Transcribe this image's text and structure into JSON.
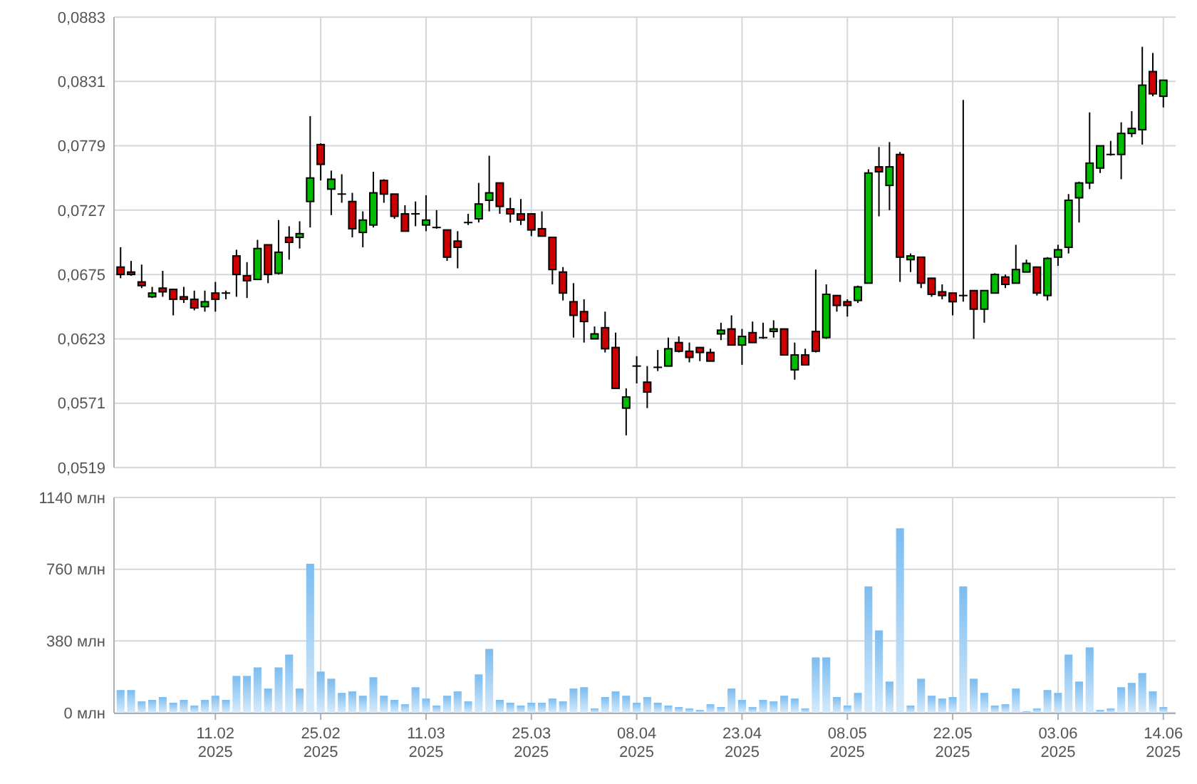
{
  "chart_data": [
    {
      "type": "candlestick",
      "categories": [
        null,
        null,
        null,
        null,
        null,
        null,
        null,
        null,
        null,
        null,
        null,
        null,
        null,
        null,
        null,
        null,
        null,
        null,
        null,
        null,
        null,
        null,
        null,
        null,
        null,
        null,
        null,
        null,
        null,
        null,
        null,
        null,
        null,
        null,
        null,
        null,
        null,
        null,
        null,
        null,
        null,
        null,
        null,
        null,
        null,
        null,
        null,
        null,
        null,
        null,
        null,
        null,
        null,
        null,
        null,
        null,
        null,
        null,
        null,
        null,
        null,
        null,
        null,
        null,
        null,
        null,
        null,
        null,
        null,
        null,
        null,
        null,
        null,
        null,
        null,
        null,
        null,
        null,
        null,
        null,
        null,
        null,
        null,
        null,
        null,
        null,
        null,
        null,
        null,
        null,
        null,
        null,
        null,
        null,
        null,
        null,
        null,
        null,
        null,
        null
      ],
      "ohlc": [
        [
          0.0681,
          0.0697,
          0.0672,
          0.0675
        ],
        [
          0.0677,
          0.0686,
          0.0674,
          0.0675
        ],
        [
          0.0669,
          0.0683,
          0.0664,
          0.0666
        ],
        [
          0.0657,
          0.0665,
          0.0656,
          0.066
        ],
        [
          0.0664,
          0.0678,
          0.0657,
          0.0661
        ],
        [
          0.0663,
          0.0663,
          0.0642,
          0.0655
        ],
        [
          0.0657,
          0.0665,
          0.0652,
          0.0655
        ],
        [
          0.0655,
          0.0662,
          0.0646,
          0.0648
        ],
        [
          0.0649,
          0.0662,
          0.0645,
          0.0653
        ],
        [
          0.066,
          0.0669,
          0.0645,
          0.0655
        ],
        [
          0.066,
          0.0662,
          0.0655,
          0.066
        ],
        [
          0.069,
          0.0695,
          0.0657,
          0.0675
        ],
        [
          0.0674,
          0.0685,
          0.0656,
          0.067
        ],
        [
          0.0671,
          0.0703,
          0.0671,
          0.0696
        ],
        [
          0.0699,
          0.0699,
          0.0668,
          0.0675
        ],
        [
          0.0676,
          0.0719,
          0.0675,
          0.0693
        ],
        [
          0.0705,
          0.0714,
          0.0687,
          0.0701
        ],
        [
          0.0705,
          0.0718,
          0.0696,
          0.0708
        ],
        [
          0.0734,
          0.0803,
          0.0713,
          0.0753
        ],
        [
          0.078,
          0.0781,
          0.0751,
          0.0764
        ],
        [
          0.0744,
          0.0759,
          0.0723,
          0.0752
        ],
        [
          0.074,
          0.0756,
          0.0733,
          0.074
        ],
        [
          0.0734,
          0.0741,
          0.0705,
          0.0712
        ],
        [
          0.0709,
          0.0726,
          0.0697,
          0.0719
        ],
        [
          0.0715,
          0.0758,
          0.0713,
          0.0741
        ],
        [
          0.0751,
          0.0752,
          0.0733,
          0.074
        ],
        [
          0.074,
          0.074,
          0.072,
          0.0722
        ],
        [
          0.0724,
          0.0731,
          0.071,
          0.071
        ],
        [
          0.0724,
          0.0734,
          0.0714,
          0.0724
        ],
        [
          0.0715,
          0.0739,
          0.071,
          0.0719
        ],
        [
          0.0713,
          0.0727,
          0.0712,
          0.0713
        ],
        [
          0.0711,
          0.0711,
          0.0686,
          0.0689
        ],
        [
          0.0702,
          0.071,
          0.068,
          0.0697
        ],
        [
          0.0717,
          0.0724,
          0.0715,
          0.0717
        ],
        [
          0.072,
          0.0749,
          0.0717,
          0.0732
        ],
        [
          0.0735,
          0.0771,
          0.0726,
          0.0741
        ],
        [
          0.0749,
          0.0749,
          0.0724,
          0.073
        ],
        [
          0.0728,
          0.0737,
          0.0717,
          0.0724
        ],
        [
          0.0724,
          0.0736,
          0.0715,
          0.0719
        ],
        [
          0.0724,
          0.0724,
          0.0706,
          0.0711
        ],
        [
          0.0712,
          0.0726,
          0.0706,
          0.0706
        ],
        [
          0.0705,
          0.0705,
          0.0667,
          0.0679
        ],
        [
          0.0677,
          0.0681,
          0.0654,
          0.066
        ],
        [
          0.0653,
          0.0668,
          0.0624,
          0.0642
        ],
        [
          0.0645,
          0.0655,
          0.062,
          0.0637
        ],
        [
          0.0623,
          0.0633,
          0.0623,
          0.0627
        ],
        [
          0.0632,
          0.0645,
          0.0612,
          0.0615
        ],
        [
          0.0616,
          0.0628,
          0.0583,
          0.0583
        ],
        [
          0.0567,
          0.0583,
          0.0545,
          0.0576
        ],
        [
          0.0601,
          0.0609,
          0.0587,
          0.0601
        ],
        [
          0.0588,
          0.0601,
          0.0567,
          0.058
        ],
        [
          0.06,
          0.0614,
          0.0597,
          0.06
        ],
        [
          0.0601,
          0.0624,
          0.0601,
          0.0615
        ],
        [
          0.062,
          0.0625,
          0.0612,
          0.0613
        ],
        [
          0.0613,
          0.062,
          0.0604,
          0.0608
        ],
        [
          0.0616,
          0.0616,
          0.0605,
          0.0612
        ],
        [
          0.0612,
          0.0615,
          0.0605,
          0.0605
        ],
        [
          0.0627,
          0.0636,
          0.0622,
          0.063
        ],
        [
          0.0631,
          0.0642,
          0.0618,
          0.0618
        ],
        [
          0.0618,
          0.0631,
          0.0602,
          0.0625
        ],
        [
          0.0628,
          0.0637,
          0.062,
          0.062
        ],
        [
          0.0624,
          0.0636,
          0.0623,
          0.0624
        ],
        [
          0.0629,
          0.0638,
          0.0624,
          0.0631
        ],
        [
          0.0631,
          0.0631,
          0.061,
          0.061
        ],
        [
          0.0598,
          0.062,
          0.059,
          0.061
        ],
        [
          0.061,
          0.0615,
          0.0602,
          0.0602
        ],
        [
          0.0629,
          0.0679,
          0.0612,
          0.0613
        ],
        [
          0.0624,
          0.0667,
          0.0623,
          0.0659
        ],
        [
          0.0658,
          0.0658,
          0.0645,
          0.065
        ],
        [
          0.0653,
          0.0655,
          0.0641,
          0.065
        ],
        [
          0.0654,
          0.0666,
          0.0652,
          0.0665
        ],
        [
          0.0668,
          0.076,
          0.0668,
          0.0757
        ],
        [
          0.0762,
          0.0778,
          0.0722,
          0.0758
        ],
        [
          0.0747,
          0.0782,
          0.0727,
          0.0762
        ],
        [
          0.0772,
          0.0774,
          0.0669,
          0.0689
        ],
        [
          0.0687,
          0.0692,
          0.0677,
          0.069
        ],
        [
          0.0689,
          0.0689,
          0.0664,
          0.0668
        ],
        [
          0.0672,
          0.0672,
          0.0657,
          0.0659
        ],
        [
          0.0661,
          0.0667,
          0.0655,
          0.0658
        ],
        [
          0.066,
          0.066,
          0.0642,
          0.0653
        ],
        [
          0.0658,
          0.0816,
          0.0653,
          0.0658
        ],
        [
          0.0662,
          0.0662,
          0.0623,
          0.0647
        ],
        [
          0.0647,
          0.0662,
          0.0636,
          0.0662
        ],
        [
          0.066,
          0.0676,
          0.066,
          0.0675
        ],
        [
          0.0673,
          0.0675,
          0.0664,
          0.0667
        ],
        [
          0.0668,
          0.0699,
          0.0668,
          0.0679
        ],
        [
          0.0677,
          0.0687,
          0.0677,
          0.0684
        ],
        [
          0.0681,
          0.0681,
          0.0658,
          0.066
        ],
        [
          0.0658,
          0.0689,
          0.0654,
          0.0688
        ],
        [
          0.0689,
          0.0699,
          0.0682,
          0.0695
        ],
        [
          0.0697,
          0.074,
          0.0692,
          0.0735
        ],
        [
          0.0737,
          0.075,
          0.0717,
          0.0749
        ],
        [
          0.0749,
          0.0806,
          0.0744,
          0.0765
        ],
        [
          0.0761,
          0.0779,
          0.0757,
          0.0779
        ],
        [
          0.0772,
          0.0783,
          0.0771,
          0.0772
        ],
        [
          0.0772,
          0.0798,
          0.0752,
          0.0789
        ],
        [
          0.0789,
          0.0807,
          0.0786,
          0.0793
        ],
        [
          0.0792,
          0.0859,
          0.078,
          0.0828
        ],
        [
          0.0839,
          0.0854,
          0.0819,
          0.0821
        ],
        [
          0.0819,
          0.0832,
          0.081,
          0.0832
        ]
      ],
      "colors": [
        "#cc0000",
        "#cc0000",
        "#cc0000",
        "#00bb00",
        "#cc0000",
        "#cc0000",
        "#cc0000",
        "#cc0000",
        "#00bb00",
        "#cc0000",
        "#000000",
        "#cc0000",
        "#cc0000",
        "#00bb00",
        "#cc0000",
        "#00bb00",
        "#cc0000",
        "#00bb00",
        "#00bb00",
        "#cc0000",
        "#00bb00",
        "#000000",
        "#cc0000",
        "#00bb00",
        "#00bb00",
        "#cc0000",
        "#cc0000",
        "#cc0000",
        "#000000",
        "#00bb00",
        "#000000",
        "#cc0000",
        "#cc0000",
        "#000000",
        "#00bb00",
        "#00bb00",
        "#cc0000",
        "#cc0000",
        "#cc0000",
        "#cc0000",
        "#cc0000",
        "#cc0000",
        "#cc0000",
        "#cc0000",
        "#cc0000",
        "#00bb00",
        "#cc0000",
        "#cc0000",
        "#00bb00",
        "#000000",
        "#cc0000",
        "#000000",
        "#00bb00",
        "#cc0000",
        "#cc0000",
        "#cc0000",
        "#cc0000",
        "#00bb00",
        "#cc0000",
        "#00bb00",
        "#cc0000",
        "#000000",
        "#00bb00",
        "#cc0000",
        "#00bb00",
        "#cc0000",
        "#cc0000",
        "#00bb00",
        "#cc0000",
        "#cc0000",
        "#00bb00",
        "#00bb00",
        "#cc0000",
        "#00bb00",
        "#cc0000",
        "#00bb00",
        "#cc0000",
        "#cc0000",
        "#cc0000",
        "#cc0000",
        "#000000",
        "#cc0000",
        "#00bb00",
        "#00bb00",
        "#cc0000",
        "#00bb00",
        "#00bb00",
        "#cc0000",
        "#00bb00",
        "#00bb00",
        "#00bb00",
        "#00bb00",
        "#00bb00",
        "#00bb00",
        "#000000",
        "#00bb00",
        "#00bb00",
        "#00bb00",
        "#cc0000",
        "#00bb00"
      ],
      "ylim": [
        0.0519,
        0.0883
      ],
      "yticks": [
        {
          "value": 0.0519,
          "label": "0,0519"
        },
        {
          "value": 0.0571,
          "label": "0,0571"
        },
        {
          "value": 0.0623,
          "label": "0,0623"
        },
        {
          "value": 0.0675,
          "label": "0,0675"
        },
        {
          "value": 0.0727,
          "label": "0,0727"
        },
        {
          "value": 0.0779,
          "label": "0,0779"
        },
        {
          "value": 0.0831,
          "label": "0,0831"
        },
        {
          "value": 0.0883,
          "label": "0,0883"
        }
      ],
      "grid": true,
      "tick_labels": "y"
    },
    {
      "type": "bar",
      "categories": [
        null,
        null,
        null,
        null,
        null,
        null,
        null,
        null,
        null,
        "11.02\n2025",
        null,
        null,
        null,
        null,
        null,
        null,
        null,
        null,
        null,
        "25.02\n2025",
        null,
        null,
        null,
        null,
        null,
        null,
        null,
        null,
        null,
        "11.03\n2025",
        null,
        null,
        null,
        null,
        null,
        null,
        null,
        null,
        null,
        "25.03\n2025",
        null,
        null,
        null,
        null,
        null,
        null,
        null,
        null,
        null,
        "08.04\n2025",
        null,
        null,
        null,
        null,
        null,
        null,
        null,
        null,
        null,
        "23.04\n2025",
        null,
        null,
        null,
        null,
        null,
        null,
        null,
        null,
        null,
        "08.05\n2025",
        null,
        null,
        null,
        null,
        null,
        null,
        null,
        null,
        null,
        "22.05\n2025",
        null,
        null,
        null,
        null,
        null,
        null,
        null,
        null,
        null,
        "03.06\n2025",
        null,
        null,
        null,
        null,
        null,
        null,
        null,
        null,
        null,
        "14.06\n2025"
      ],
      "values": [
        120,
        120,
        60,
        68,
        83,
        53,
        68,
        38,
        68,
        90,
        68,
        195,
        195,
        240,
        128,
        240,
        308,
        128,
        789,
        218,
        180,
        105,
        113,
        90,
        188,
        90,
        68,
        45,
        135,
        75,
        38,
        90,
        113,
        60,
        203,
        338,
        68,
        53,
        38,
        53,
        53,
        75,
        60,
        128,
        135,
        23,
        83,
        113,
        90,
        53,
        83,
        53,
        38,
        30,
        23,
        15,
        45,
        30,
        128,
        68,
        30,
        68,
        60,
        90,
        75,
        23,
        293,
        293,
        83,
        38,
        105,
        669,
        436,
        165,
        977,
        38,
        180,
        90,
        75,
        83,
        669,
        180,
        105,
        38,
        45,
        128,
        8,
        23,
        120,
        105,
        308,
        165,
        346,
        15,
        23,
        135,
        158,
        210,
        113,
        30
      ],
      "color": "#7bbcf0",
      "ylim": [
        0,
        1140
      ],
      "yticks": [
        {
          "value": 0,
          "label": "0 млн"
        },
        {
          "value": 380,
          "label": "380 млн"
        },
        {
          "value": 760,
          "label": "760 млн"
        },
        {
          "value": 1140,
          "label": "1140 млн"
        }
      ],
      "grid": true
    }
  ]
}
